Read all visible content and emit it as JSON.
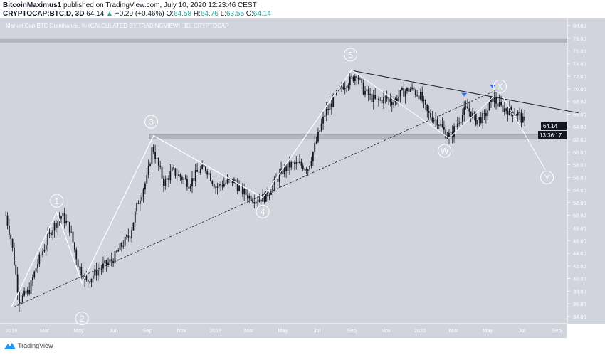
{
  "header": {
    "author": "BitcoinMaximus1",
    "published": "published on TradingView.com, July 10, 2020 12:23:46 CEST",
    "symbol": "CRYPTOCAP:BTC.D, 3D",
    "last": "64.14",
    "change": "+0.29 (+0.46%)",
    "o_label": "O:",
    "o": "64.58",
    "h_label": "H:",
    "h": "64.76",
    "l_label": "L:",
    "l": "63.55",
    "c_label": "C:",
    "c": "64.14"
  },
  "footer": {
    "brand": "TradingView"
  },
  "colors": {
    "background": "#d1d4dc",
    "text_up": "#26a69a",
    "candle": "#131722",
    "wave": "#ffffff",
    "signal": "#2962ff"
  },
  "chart_data": {
    "type": "candlestick",
    "title": "Market Cap BTC Dominance, % (CALCULATED BY TRADINGVIEW), 3D, CRYPTOCAP",
    "ylim": [
      32.5,
      81.5
    ],
    "y_ticks": [
      "80.00",
      "78.00",
      "76.00",
      "74.00",
      "72.00",
      "70.00",
      "68.00",
      "66.00",
      "64.00",
      "62.00",
      "60.00",
      "58.00",
      "56.00",
      "54.00",
      "52.00",
      "50.00",
      "48.00",
      "46.00",
      "44.00",
      "42.00",
      "40.00",
      "38.00",
      "36.00",
      "34.00"
    ],
    "x_ticks": [
      [
        "2018",
        "2018-01-01"
      ],
      [
        "Mar",
        "2018-03-01"
      ],
      [
        "May",
        "2018-05-01"
      ],
      [
        "Jul",
        "2018-07-01"
      ],
      [
        "Sep",
        "2018-09-01"
      ],
      [
        "Nov",
        "2018-11-01"
      ],
      [
        "2019",
        "2019-01-01"
      ],
      [
        "Mar",
        "2019-03-01"
      ],
      [
        "May",
        "2019-05-01"
      ],
      [
        "Jul",
        "2019-07-01"
      ],
      [
        "Sep",
        "2019-09-01"
      ],
      [
        "Nov",
        "2019-11-01"
      ],
      [
        "2020",
        "2020-01-01"
      ],
      [
        "Mar",
        "2020-03-01"
      ],
      [
        "May",
        "2020-05-01"
      ],
      [
        "Jul",
        "2020-07-01"
      ],
      [
        "Sep",
        "2020-09-01"
      ]
    ],
    "price_label": "64.14",
    "countdown": "13:36:17",
    "close": [
      [
        "2017-12-22",
        50
      ],
      [
        "2018-01-01",
        46
      ],
      [
        "2018-01-15",
        36.5
      ],
      [
        "2018-02-01",
        38
      ],
      [
        "2018-02-15",
        42
      ],
      [
        "2018-03-01",
        45
      ],
      [
        "2018-03-15",
        48
      ],
      [
        "2018-04-01",
        50
      ],
      [
        "2018-04-15",
        48
      ],
      [
        "2018-05-01",
        42
      ],
      [
        "2018-05-15",
        39.5
      ],
      [
        "2018-06-01",
        41
      ],
      [
        "2018-06-15",
        42
      ],
      [
        "2018-07-01",
        43
      ],
      [
        "2018-07-15",
        45
      ],
      [
        "2018-08-01",
        47
      ],
      [
        "2018-08-15",
        52
      ],
      [
        "2018-09-01",
        56
      ],
      [
        "2018-09-10",
        61
      ],
      [
        "2018-09-20",
        58
      ],
      [
        "2018-10-01",
        55
      ],
      [
        "2018-10-15",
        57
      ],
      [
        "2018-11-01",
        56
      ],
      [
        "2018-11-15",
        55
      ],
      [
        "2018-12-01",
        57
      ],
      [
        "2018-12-15",
        57.5
      ],
      [
        "2019-01-01",
        54.5
      ],
      [
        "2019-01-15",
        55
      ],
      [
        "2019-02-01",
        55.5
      ],
      [
        "2019-02-15",
        54
      ],
      [
        "2019-03-01",
        53
      ],
      [
        "2019-03-15",
        52.5
      ],
      [
        "2019-04-01",
        53
      ],
      [
        "2019-04-15",
        55
      ],
      [
        "2019-05-01",
        57
      ],
      [
        "2019-05-15",
        58
      ],
      [
        "2019-06-01",
        58
      ],
      [
        "2019-06-15",
        57.5
      ],
      [
        "2019-07-01",
        62
      ],
      [
        "2019-07-15",
        66
      ],
      [
        "2019-08-01",
        68.5
      ],
      [
        "2019-08-15",
        70.5
      ],
      [
        "2019-09-01",
        71.5
      ],
      [
        "2019-09-10",
        72.5
      ],
      [
        "2019-09-20",
        70
      ],
      [
        "2019-10-01",
        69
      ],
      [
        "2019-10-15",
        68
      ],
      [
        "2019-11-01",
        68.5
      ],
      [
        "2019-11-15",
        68
      ],
      [
        "2019-12-01",
        69.5
      ],
      [
        "2019-12-15",
        70
      ],
      [
        "2020-01-01",
        69
      ],
      [
        "2020-01-15",
        66
      ],
      [
        "2020-02-01",
        65
      ],
      [
        "2020-02-15",
        63
      ],
      [
        "2020-02-25",
        62.5
      ],
      [
        "2020-03-10",
        65
      ],
      [
        "2020-03-25",
        67
      ],
      [
        "2020-04-10",
        65
      ],
      [
        "2020-04-25",
        65.5
      ],
      [
        "2020-05-10",
        68.5
      ],
      [
        "2020-05-25",
        67
      ],
      [
        "2020-06-10",
        66.5
      ],
      [
        "2020-06-25",
        66
      ],
      [
        "2020-07-08",
        64.14
      ]
    ],
    "waves": [
      [
        "1",
        "2018-03-23",
        52.3
      ],
      [
        "2",
        "2018-05-07",
        33.7
      ],
      [
        "3",
        "2018-09-08",
        64.8
      ],
      [
        "4",
        "2019-03-26",
        50.6
      ],
      [
        "5",
        "2019-08-30",
        75.4
      ],
      [
        "W",
        "2020-02-14",
        60.2
      ],
      [
        "X",
        "2020-05-23",
        70.4
      ],
      [
        "Y",
        "2020-08-15",
        56
      ]
    ],
    "wave_path": [
      [
        "2018-01-01",
        35.5
      ],
      [
        "2018-03-23",
        50.5
      ],
      [
        "2018-05-07",
        39.3
      ],
      [
        "2018-09-12",
        62.6
      ],
      [
        "2019-03-26",
        52.8
      ],
      [
        "2019-09-01",
        73
      ]
    ],
    "wxy_path": [
      [
        [
          "2019-09-01",
          73
        ],
        [
          "2020-02-22",
          62.2
        ]
      ],
      [
        [
          "2020-02-22",
          62.2
        ],
        [
          "2020-05-12",
          68.8
        ]
      ],
      [
        [
          "2020-05-28",
          68.8
        ],
        [
          "2020-08-12",
          57.2
        ]
      ]
    ],
    "trendline": [
      [
        "2019-09-01",
        72.9
      ],
      [
        "2020-10-10",
        66.2
      ]
    ],
    "dotted_trendline": [
      [
        "2018-01-05",
        35.5
      ],
      [
        "2020-05-19",
        69.9
      ]
    ],
    "support_zone": [
      "2018-09-05",
      62.05,
      62.8
    ],
    "top_band": [
      77.3,
      77.9
    ],
    "signals": [
      [
        "2020-03-20",
        68.9
      ],
      [
        "2020-05-10",
        70.2
      ]
    ]
  }
}
